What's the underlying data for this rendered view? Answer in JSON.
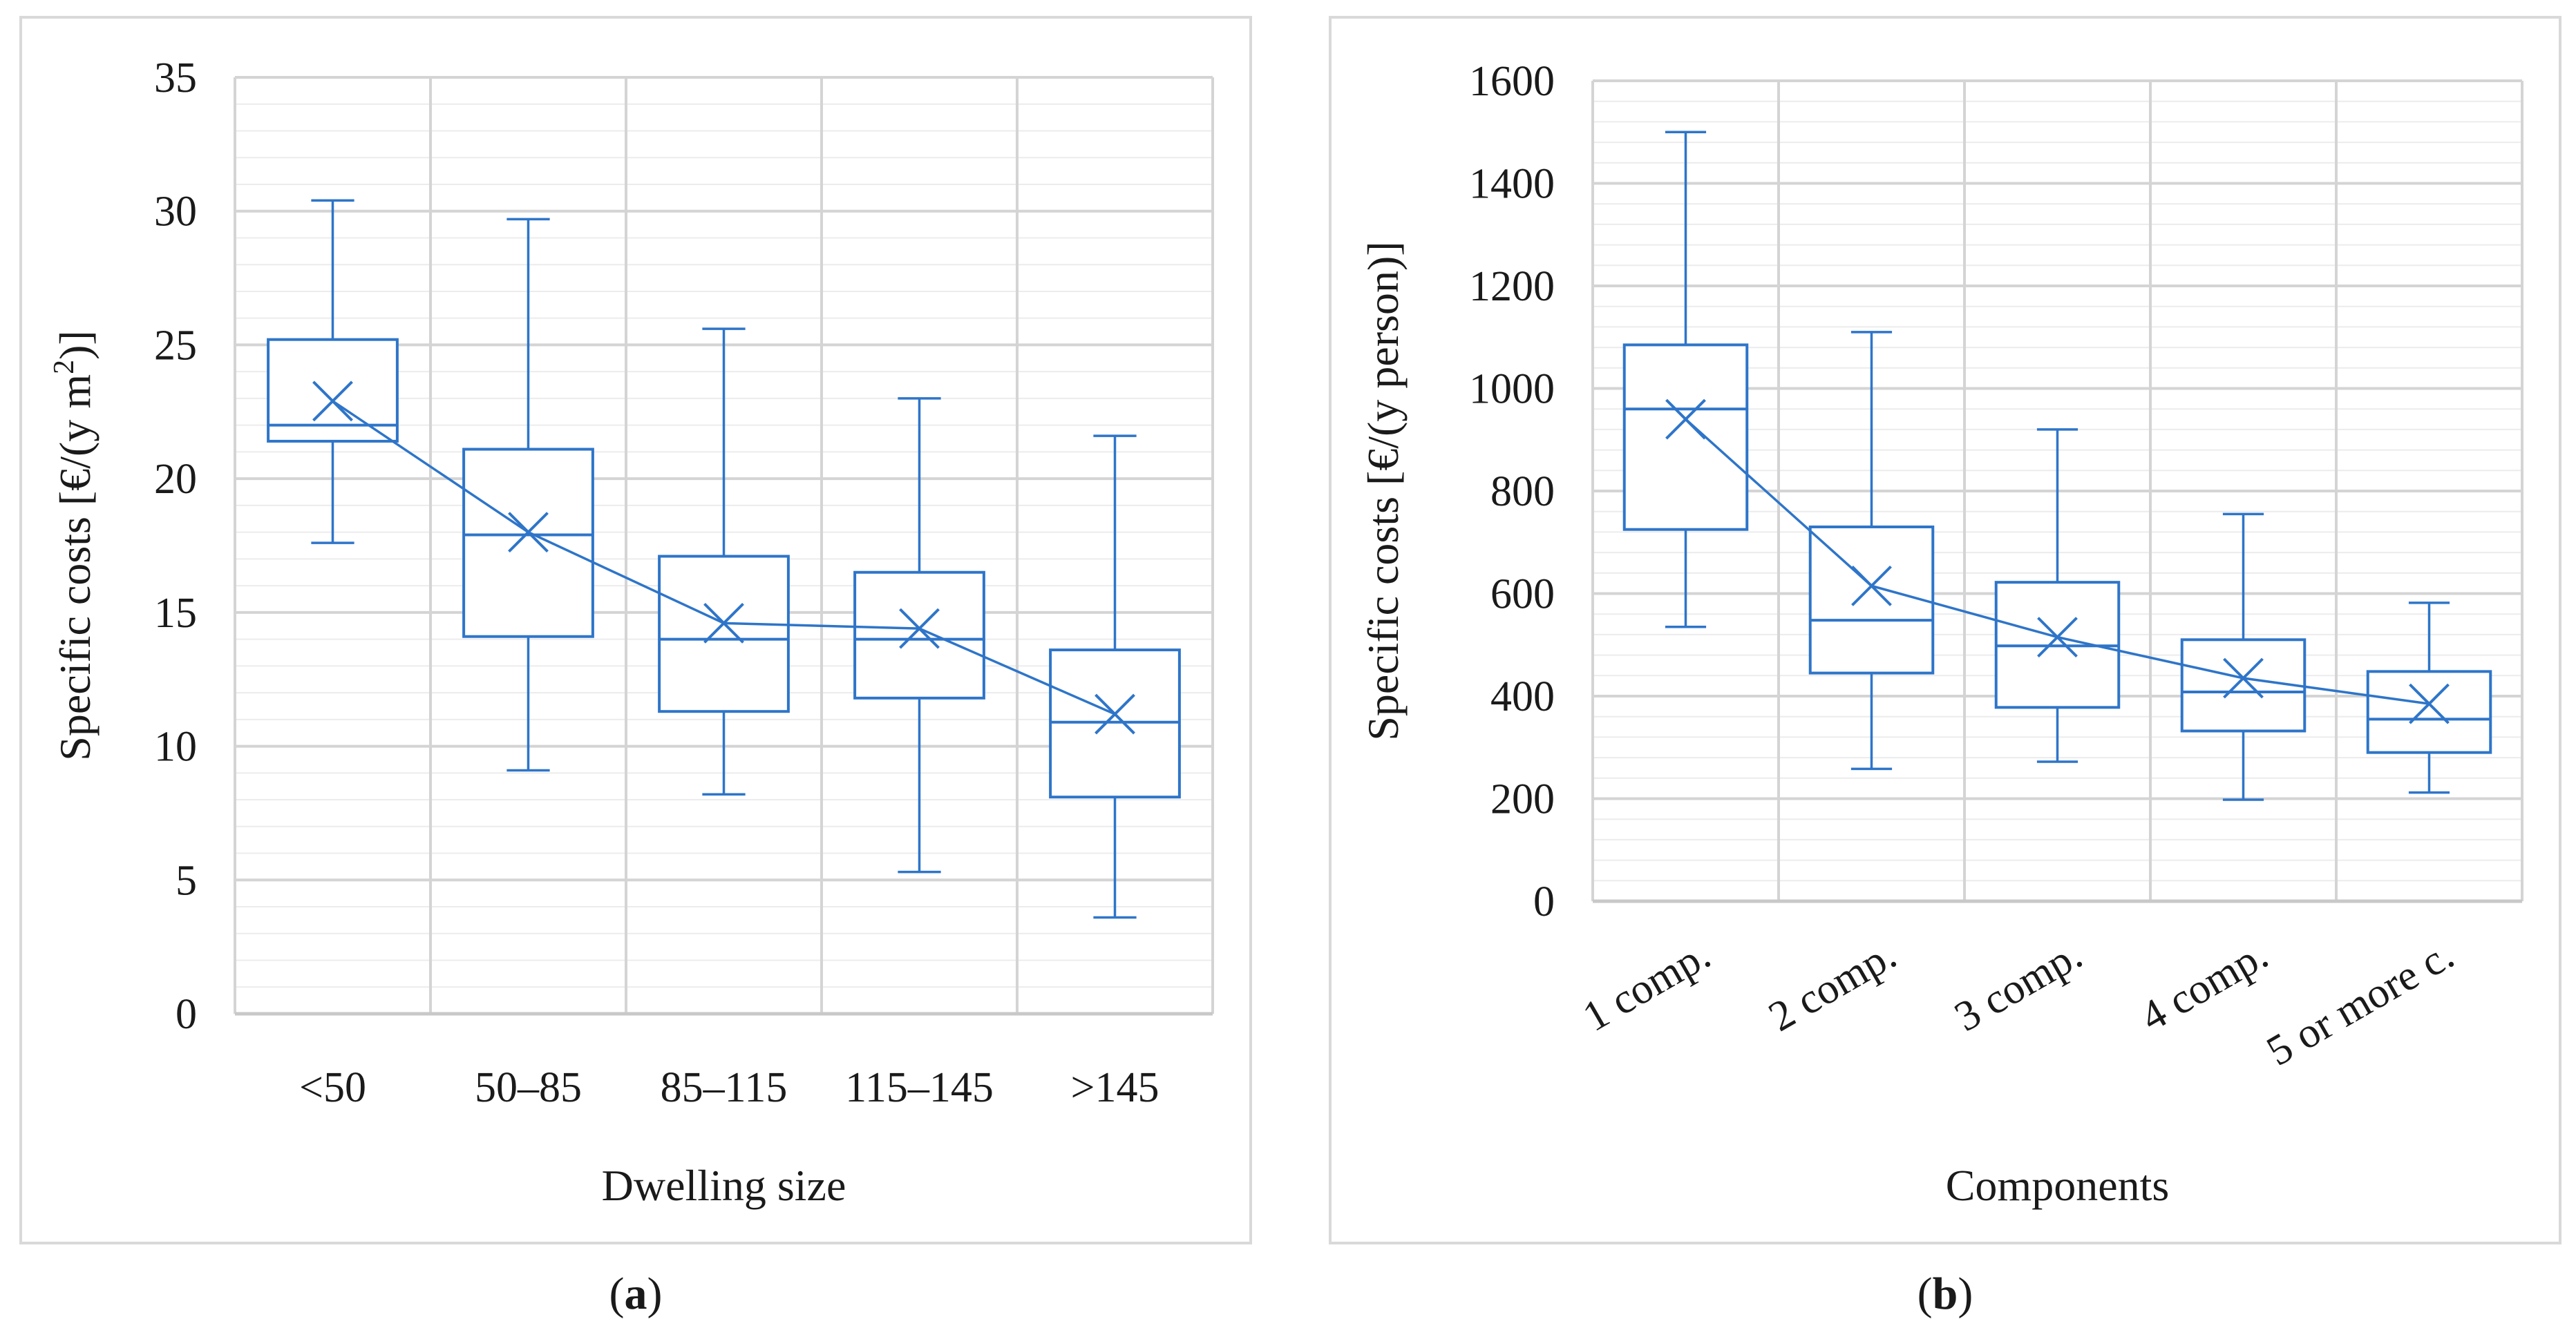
{
  "chart_data": [
    {
      "type": "box",
      "panel_label": "a",
      "xlabel": "Dwelling size",
      "ylabel_main": "Specific costs [€/(y m",
      "ylabel_sup": "2",
      "ylabel_end": ")]",
      "ylim": [
        0,
        35
      ],
      "y_major_step": 5,
      "y_minor_step": 1,
      "yticks": [
        "0",
        "5",
        "10",
        "15",
        "20",
        "25",
        "30",
        "35"
      ],
      "categories": [
        "<50",
        "50–85",
        "85–115",
        "115–145",
        ">145"
      ],
      "boxes": [
        {
          "min": 17.6,
          "q1": 21.4,
          "median": 22.0,
          "q3": 25.2,
          "max": 30.4,
          "mean": 22.9
        },
        {
          "min": 9.1,
          "q1": 14.1,
          "median": 17.9,
          "q3": 21.1,
          "max": 29.7,
          "mean": 18.0
        },
        {
          "min": 8.2,
          "q1": 11.3,
          "median": 14.0,
          "q3": 17.1,
          "max": 25.6,
          "mean": 14.6
        },
        {
          "min": 5.3,
          "q1": 11.8,
          "median": 14.0,
          "q3": 16.5,
          "max": 23.0,
          "mean": 14.4
        },
        {
          "min": 3.6,
          "q1": 8.1,
          "median": 10.9,
          "q3": 13.6,
          "max": 21.6,
          "mean": 11.2
        }
      ],
      "mean_line": true,
      "color": "#2e75c9",
      "grid": true
    },
    {
      "type": "box",
      "panel_label": "b",
      "xlabel": "Components",
      "ylabel_main": "Specific costs [€/(y person)]",
      "ylabel_sup": "",
      "ylabel_end": "",
      "ylim": [
        0,
        1600
      ],
      "y_major_step": 200,
      "y_minor_step": 40,
      "yticks": [
        "0",
        "200",
        "400",
        "600",
        "800",
        "1000",
        "1200",
        "1400",
        "1600"
      ],
      "categories": [
        "1 comp.",
        "2 comp.",
        "3 comp.",
        "4 comp.",
        "5 or more c."
      ],
      "boxes": [
        {
          "min": 535,
          "q1": 725,
          "median": 960,
          "q3": 1085,
          "max": 1500,
          "mean": 940
        },
        {
          "min": 258,
          "q1": 445,
          "median": 548,
          "q3": 730,
          "max": 1110,
          "mean": 615
        },
        {
          "min": 272,
          "q1": 378,
          "median": 498,
          "q3": 622,
          "max": 920,
          "mean": 515
        },
        {
          "min": 198,
          "q1": 332,
          "median": 408,
          "q3": 510,
          "max": 755,
          "mean": 435
        },
        {
          "min": 212,
          "q1": 290,
          "median": 355,
          "q3": 448,
          "max": 582,
          "mean": 385
        }
      ],
      "mean_line": true,
      "color": "#2e75c9",
      "grid": true
    }
  ]
}
